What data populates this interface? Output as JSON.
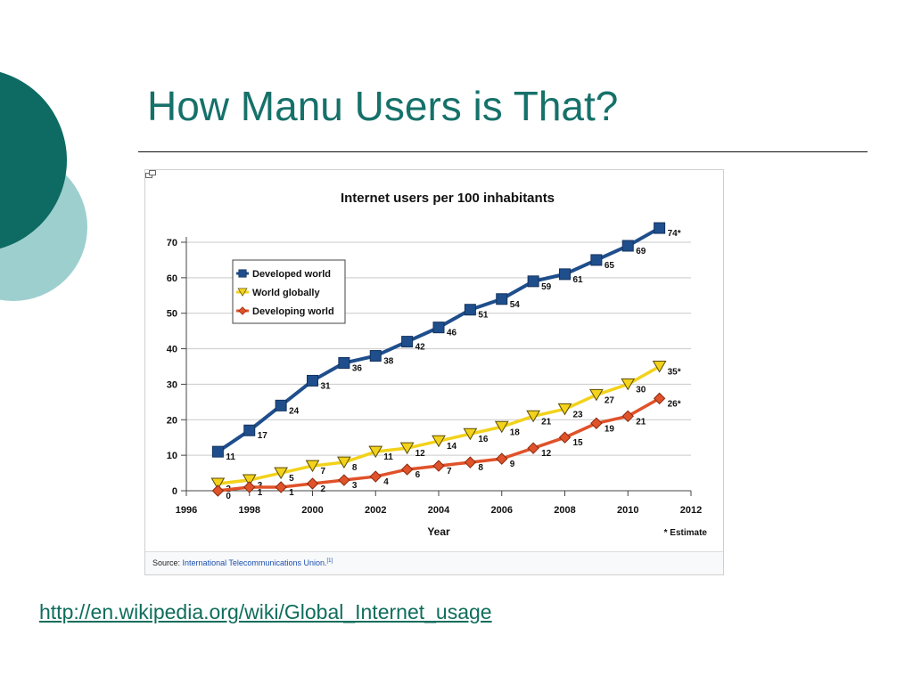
{
  "slide": {
    "title": "How Manu Users is That?",
    "link": "http://en.wikipedia.org/wiki/Global_Internet_usage",
    "source_label": "Source:",
    "source_text": "International Telecommunications Union.",
    "source_ref": "[1]",
    "colors": {
      "title": "#16716a",
      "decor_dark": "#0d6b63",
      "decor_light": "#9ecfcf",
      "link": "#0f6d5c"
    }
  },
  "chart_data": {
    "type": "line",
    "title": "Internet users per 100 inhabitants",
    "xlabel": "Year",
    "ylabel": "",
    "xlim": [
      1996,
      2012
    ],
    "ylim": [
      0,
      70
    ],
    "x_ticks": [
      1996,
      1998,
      2000,
      2002,
      2004,
      2006,
      2008,
      2010,
      2012
    ],
    "y_ticks": [
      0,
      10,
      20,
      30,
      40,
      50,
      60,
      70
    ],
    "grid": true,
    "legend": "top-left",
    "note": "* Estimate",
    "series": [
      {
        "name": "Developed world",
        "color": "#1f4e8c",
        "marker": "square",
        "x": [
          1997,
          1998,
          1999,
          2000,
          2001,
          2002,
          2003,
          2004,
          2005,
          2006,
          2007,
          2008,
          2009,
          2010,
          2011
        ],
        "values": [
          11,
          17,
          24,
          31,
          36,
          38,
          42,
          46,
          51,
          54,
          59,
          61,
          65,
          69,
          74
        ],
        "labels": [
          "11",
          "17",
          "24",
          "31",
          "36",
          "38",
          "42",
          "46",
          "51",
          "54",
          "59",
          "61",
          "65",
          "69",
          "74*"
        ]
      },
      {
        "name": "World globally",
        "color": "#f2d21b",
        "marker": "triangle-down",
        "x": [
          1997,
          1998,
          1999,
          2000,
          2001,
          2002,
          2003,
          2004,
          2005,
          2006,
          2007,
          2008,
          2009,
          2010,
          2011
        ],
        "values": [
          2,
          3,
          5,
          7,
          8,
          11,
          12,
          14,
          16,
          18,
          21,
          23,
          27,
          30,
          35
        ],
        "labels": [
          "2",
          "3",
          "5",
          "7",
          "8",
          "11",
          "12",
          "14",
          "16",
          "18",
          "21",
          "23",
          "27",
          "30",
          "35*"
        ]
      },
      {
        "name": "Developing world",
        "color": "#e0522a",
        "marker": "diamond",
        "x": [
          1997,
          1998,
          1999,
          2000,
          2001,
          2002,
          2003,
          2004,
          2005,
          2006,
          2007,
          2008,
          2009,
          2010,
          2011
        ],
        "values": [
          0,
          1,
          1,
          2,
          3,
          4,
          6,
          7,
          8,
          9,
          12,
          15,
          19,
          21,
          26
        ],
        "labels": [
          "0",
          "1",
          "1",
          "2",
          "3",
          "4",
          "6",
          "7",
          "8",
          "9",
          "12",
          "15",
          "19",
          "21",
          "26*"
        ]
      }
    ]
  }
}
